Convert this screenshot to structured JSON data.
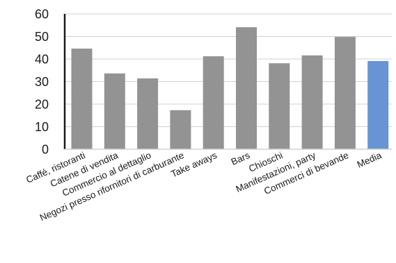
{
  "chart_data": {
    "type": "bar",
    "title": "",
    "xlabel": "",
    "ylabel": "",
    "categories": [
      "Caffé, ristoranti",
      "Catene di vendita",
      "Commercio al dettaglio",
      "Negozi presso rifornitori di carburante",
      "Take aways",
      "Bars",
      "Chioschi",
      "Manifestazioni, party",
      "Commerci di bevande",
      "Media"
    ],
    "values": [
      44.6,
      33.6,
      31.4,
      17.3,
      41.2,
      54.1,
      38.1,
      41.6,
      49.8,
      39.1
    ],
    "highlight_index": 9,
    "ylim": [
      0,
      60
    ],
    "yticks": [
      0,
      10,
      20,
      30,
      40,
      50,
      60
    ],
    "grid": true,
    "legend": "none",
    "colors": {
      "bar": "#939393",
      "highlight": "#6794d2",
      "grid": "#d0d0d0",
      "axis": "#1a1a1a"
    }
  }
}
